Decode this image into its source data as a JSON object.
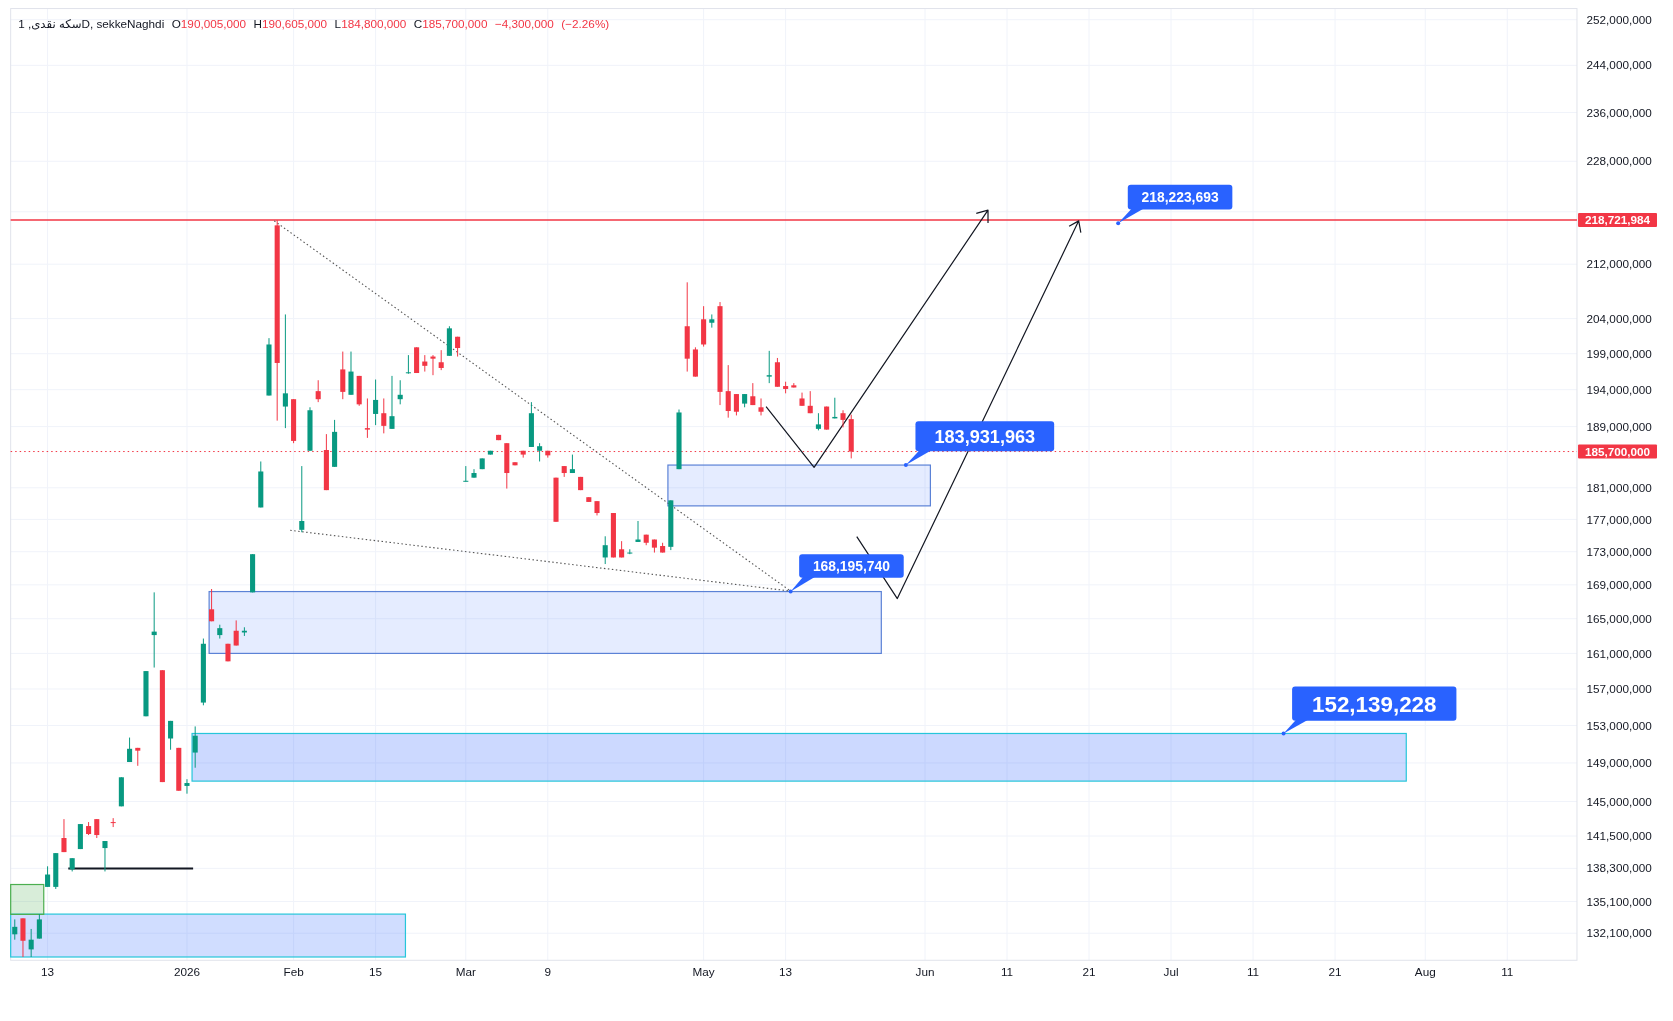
{
  "chart_data": {
    "type": "candlestick",
    "title": "سکه نقدی, 1D, sekkeNaghdi",
    "subtitle": "O190,005,000 H190,605,000 L184,800,000 C185,700,000 −4,300,000 (−2.26%)",
    "categories": [
      null,
      null,
      null,
      null,
      "13",
      null,
      null,
      null,
      null,
      null,
      null,
      null,
      null,
      null,
      null,
      null,
      null,
      null,
      null,
      null,
      null,
      "2026",
      null,
      null,
      null,
      null,
      null,
      null,
      null,
      null,
      null,
      null,
      null,
      null,
      "Feb",
      null,
      null,
      null,
      null,
      null,
      null,
      null,
      null,
      null,
      "15",
      null,
      null,
      null,
      null,
      null,
      null,
      null,
      null,
      null,
      null,
      "Mar",
      null,
      null,
      null,
      null,
      null,
      null,
      null,
      null,
      null,
      "9",
      null,
      null,
      null,
      null,
      null,
      null,
      null,
      null,
      null,
      null,
      null,
      null,
      null,
      null,
      null,
      null,
      null,
      null,
      "May",
      null,
      null,
      null,
      null,
      null,
      null,
      null,
      null,
      null,
      "13",
      null,
      null,
      null,
      null,
      null,
      null,
      null,
      null,
      null,
      null,
      null,
      null,
      null,
      null,
      null,
      null,
      "Jun",
      null,
      null,
      null,
      null,
      null,
      null,
      null,
      null,
      null,
      "11",
      null,
      null,
      null,
      null,
      null,
      null,
      null,
      null,
      null,
      "21",
      null,
      null,
      null,
      null,
      null,
      null,
      null,
      null,
      null,
      "Jul",
      null,
      null,
      null,
      null,
      null,
      null,
      null,
      null,
      null,
      "11",
      null,
      null,
      null,
      null,
      null,
      null,
      null,
      null,
      null,
      "21",
      null,
      null,
      null,
      null,
      null,
      null,
      null,
      null,
      null,
      null,
      "Aug",
      null,
      null,
      null,
      null,
      null,
      null,
      null,
      null,
      null,
      "11",
      null,
      null,
      null,
      null,
      null,
      null,
      null,
      null
    ],
    "ohlc": [
      [
        132000000,
        133400000,
        131500000,
        132700000
      ],
      [
        133500000,
        133500000,
        129900000,
        131400000
      ],
      [
        130600000,
        132500000,
        129900000,
        131500000
      ],
      [
        131600000,
        133900000,
        131600000,
        133400000
      ],
      [
        136500000,
        138500000,
        136500000,
        137700000
      ],
      [
        136500000,
        139800000,
        136300000,
        139800000
      ],
      [
        141300000,
        143200000,
        139900000,
        139900000
      ],
      [
        138200000,
        139300000,
        138000000,
        139300000
      ],
      [
        140200000,
        142700000,
        140200000,
        142700000
      ],
      [
        142500000,
        142900000,
        141600000,
        141700000
      ],
      [
        143200000,
        143200000,
        141300000,
        141600000
      ],
      [
        140300000,
        141000000,
        138000000,
        141000000
      ],
      [
        142900000,
        143300000,
        142400000,
        142800000
      ],
      [
        144500000,
        147500000,
        144500000,
        147500000
      ],
      [
        149100000,
        151700000,
        149100000,
        150500000
      ],
      [
        150600000,
        150600000,
        148700000,
        150300000
      ],
      [
        154000000,
        159000000,
        154000000,
        159000000
      ],
      [
        163100000,
        168100000,
        159400000,
        163500000
      ],
      [
        159100000,
        159100000,
        147000000,
        147000000
      ],
      [
        151600000,
        153500000,
        150400000,
        153500000
      ],
      [
        150600000,
        150600000,
        146100000,
        146100000
      ],
      [
        146600000,
        147300000,
        145800000,
        146900000
      ],
      [
        150100000,
        152900000,
        148500000,
        151900000
      ],
      [
        155500000,
        162700000,
        155200000,
        162100000
      ],
      [
        166100000,
        168500000,
        164700000,
        164700000
      ],
      [
        163100000,
        164300000,
        162700000,
        163900000
      ],
      [
        162100000,
        162100000,
        160100000,
        160100000
      ],
      [
        163600000,
        164800000,
        161900000,
        161900000
      ],
      [
        163400000,
        164000000,
        163000000,
        163600000
      ],
      [
        168100000,
        172700000,
        168100000,
        172700000
      ],
      [
        178500000,
        184400000,
        178500000,
        183100000
      ],
      [
        193200000,
        201200000,
        193200000,
        200300000
      ],
      [
        217900000,
        218700000,
        189800000,
        197700000
      ],
      [
        191700000,
        204600000,
        188800000,
        193500000
      ],
      [
        192700000,
        192700000,
        186800000,
        187100000
      ],
      [
        175700000,
        183800000,
        175400000,
        176800000
      ],
      [
        185800000,
        191600000,
        185800000,
        191200000
      ],
      [
        193800000,
        195300000,
        192300000,
        192700000
      ],
      [
        185900000,
        188000000,
        180700000,
        180700000
      ],
      [
        183700000,
        189900000,
        183700000,
        188300000
      ],
      [
        196800000,
        199300000,
        192700000,
        193700000
      ],
      [
        193300000,
        199300000,
        193300000,
        196500000
      ],
      [
        195900000,
        195900000,
        191800000,
        192000000
      ],
      [
        188800000,
        192800000,
        187500000,
        188600000
      ],
      [
        190700000,
        195400000,
        189200000,
        192600000
      ],
      [
        190800000,
        192800000,
        188100000,
        189100000
      ],
      [
        188700000,
        195900000,
        188700000,
        190400000
      ],
      [
        192700000,
        195300000,
        192000000,
        193300000
      ],
      [
        196300000,
        198800000,
        196200000,
        196400000
      ],
      [
        199900000,
        199900000,
        196300000,
        196300000
      ],
      [
        197900000,
        198800000,
        196500000,
        197300000
      ],
      [
        198600000,
        198800000,
        196000000,
        198300000
      ],
      [
        197800000,
        199500000,
        196700000,
        197000000
      ],
      [
        198700000,
        202900000,
        198700000,
        202600000
      ],
      [
        201400000,
        201400000,
        198600000,
        199800000
      ],
      [
        181800000,
        183800000,
        181800000,
        181900000
      ],
      [
        182300000,
        183400000,
        182300000,
        182900000
      ],
      [
        183400000,
        184800000,
        183400000,
        184800000
      ],
      [
        185300000,
        185800000,
        185300000,
        185800000
      ],
      [
        187900000,
        187900000,
        187200000,
        187200000
      ],
      [
        186800000,
        186800000,
        180900000,
        182900000
      ],
      [
        184300000,
        184300000,
        183900000,
        183900000
      ],
      [
        185800000,
        185800000,
        184900000,
        185300000
      ],
      [
        186300000,
        192300000,
        186300000,
        190800000
      ],
      [
        185800000,
        186800000,
        184400000,
        186400000
      ],
      [
        185800000,
        185800000,
        184900000,
        185200000
      ],
      [
        182300000,
        182300000,
        176700000,
        176700000
      ],
      [
        183800000,
        183800000,
        182400000,
        182900000
      ],
      [
        182900000,
        185300000,
        182900000,
        183400000
      ],
      [
        182400000,
        182400000,
        180700000,
        180700000
      ],
      [
        179800000,
        179800000,
        179200000,
        179200000
      ],
      [
        179300000,
        179300000,
        177500000,
        177800000
      ],
      [
        172300000,
        174900000,
        171500000,
        173800000
      ],
      [
        177800000,
        177800000,
        172300000,
        172300000
      ],
      [
        173300000,
        174300000,
        172300000,
        172300000
      ],
      [
        172800000,
        173300000,
        172700000,
        172900000
      ],
      [
        174200000,
        176800000,
        174200000,
        174500000
      ],
      [
        175100000,
        175100000,
        173800000,
        174100000
      ],
      [
        174500000,
        174500000,
        172900000,
        173500000
      ],
      [
        173700000,
        174100000,
        172900000,
        172900000
      ],
      [
        173600000,
        179400000,
        173200000,
        179400000
      ],
      [
        183400000,
        191300000,
        183400000,
        190900000
      ],
      [
        202900000,
        209300000,
        196500000,
        198300000
      ],
      [
        199600000,
        199900000,
        195800000,
        195800000
      ],
      [
        203900000,
        205800000,
        200000000,
        200300000
      ],
      [
        203400000,
        204600000,
        202700000,
        203900000
      ],
      [
        205800000,
        206400000,
        191900000,
        193700000
      ],
      [
        193800000,
        197400000,
        190200000,
        191100000
      ],
      [
        193400000,
        193400000,
        190500000,
        191000000
      ],
      [
        192100000,
        193400000,
        191600000,
        193400000
      ],
      [
        193100000,
        194900000,
        191900000,
        191900000
      ],
      [
        191600000,
        192800000,
        190500000,
        191000000
      ],
      [
        195800000,
        199400000,
        194900000,
        196000000
      ],
      [
        197800000,
        198400000,
        194400000,
        194400000
      ],
      [
        194500000,
        195100000,
        193500000,
        194100000
      ],
      [
        194600000,
        194900000,
        194300000,
        194300000
      ],
      [
        192800000,
        193600000,
        191800000,
        191800000
      ],
      [
        191800000,
        193800000,
        190800000,
        190800000
      ],
      [
        188700000,
        190800000,
        188500000,
        189300000
      ],
      [
        191700000,
        191700000,
        188600000,
        188600000
      ],
      [
        190100000,
        192900000,
        190100000,
        190300000
      ],
      [
        190800000,
        191200000,
        188900000,
        189900000
      ],
      [
        190005000,
        190605000,
        184800000,
        185700000
      ],
      null,
      null,
      null,
      null,
      null,
      null,
      null,
      null,
      null,
      null,
      null,
      null,
      null,
      null,
      null,
      null,
      null,
      null,
      null,
      null,
      null,
      null,
      null,
      null,
      null,
      null,
      null,
      null,
      null,
      null,
      null,
      null,
      null,
      null,
      null,
      null,
      null,
      null,
      null,
      null,
      null,
      null,
      null,
      null,
      null,
      null,
      null,
      null,
      null,
      null,
      null,
      null,
      null,
      null,
      null,
      null,
      null,
      null,
      null,
      null,
      null,
      null,
      null,
      null,
      null,
      null,
      null,
      null,
      null,
      null,
      null,
      null,
      null,
      null,
      null,
      null,
      null,
      null,
      null,
      null,
      null,
      null,
      null,
      null,
      null,
      null,
      null,
      null
    ],
    "colors": [
      "#089981",
      "#f23645",
      "#089981",
      "#089981",
      "#089981",
      "#089981",
      "#f23645",
      "#089981",
      "#089981",
      "#f23645",
      "#f23645",
      "#089981",
      "#f23645",
      "#089981",
      "#089981",
      "#f23645",
      "#089981",
      "#089981",
      "#f23645",
      "#089981",
      "#f23645",
      "#089981",
      "#089981",
      "#089981",
      "#f23645",
      "#089981",
      "#f23645",
      "#f23645",
      "#089981",
      "#089981",
      "#089981",
      "#089981",
      "#f23645",
      "#089981",
      "#f23645",
      "#089981",
      "#089981",
      "#f23645",
      "#f23645",
      "#089981",
      "#f23645",
      "#089981",
      "#f23645",
      "#f23645",
      "#089981",
      "#f23645",
      "#089981",
      "#089981",
      "#089981",
      "#f23645",
      "#f23645",
      "#f23645",
      "#f23645",
      "#089981",
      "#f23645",
      "#089981",
      "#089981",
      "#089981",
      "#089981",
      "#f23645",
      "#f23645",
      "#f23645",
      "#f23645",
      "#089981",
      "#089981",
      "#f23645",
      "#f23645",
      "#f23645",
      "#089981",
      "#f23645",
      "#f23645",
      "#f23645",
      "#089981",
      "#f23645",
      "#f23645",
      "#089981",
      "#089981",
      "#f23645",
      "#f23645",
      "#f23645",
      "#089981",
      "#089981",
      "#f23645",
      "#f23645",
      "#f23645",
      "#089981",
      "#f23645",
      "#f23645",
      "#f23645",
      "#089981",
      "#f23645",
      "#f23645",
      "#089981",
      "#f23645",
      "#f23645",
      "#f23645",
      "#f23645",
      "#f23645",
      "#089981",
      "#f23645",
      "#089981",
      "#f23645",
      "#f23645",
      null,
      null,
      null,
      null,
      null,
      null,
      null,
      null,
      null,
      null,
      null,
      null,
      null,
      null,
      null,
      null,
      null,
      null,
      null,
      null,
      null,
      null,
      null,
      null,
      null,
      null,
      null,
      null,
      null,
      null,
      null,
      null,
      null,
      null,
      null,
      null,
      null,
      null,
      null,
      null,
      null,
      null,
      null,
      null,
      null,
      null,
      null,
      null,
      null,
      null,
      null,
      null,
      null,
      null,
      null,
      null,
      null,
      null,
      null,
      null,
      null,
      null,
      null,
      null,
      null,
      null,
      null,
      null,
      null,
      null,
      null,
      null,
      null,
      null,
      null,
      null,
      null,
      null,
      null,
      null,
      null,
      null,
      null,
      null,
      null,
      null,
      null,
      null
    ],
    "log": true,
    "grid": true,
    "ylim": [
      129600000,
      254000000
    ],
    "yticks": [
      {
        "value": 132100000,
        "label": "132,100,000"
      },
      {
        "value": 135100000,
        "label": "135,100,000"
      },
      {
        "value": 138300000,
        "label": "138,300,000"
      },
      {
        "value": 141500000,
        "label": "141,500,000"
      },
      {
        "value": 145000000,
        "label": "145,000,000"
      },
      {
        "value": 149000000,
        "label": "149,000,000"
      },
      {
        "value": 153000000,
        "label": "153,000,000"
      },
      {
        "value": 157000000,
        "label": "157,000,000"
      },
      {
        "value": 161000000,
        "label": "161,000,000"
      },
      {
        "value": 165000000,
        "label": "165,000,000"
      },
      {
        "value": 169000000,
        "label": "169,000,000"
      },
      {
        "value": 173000000,
        "label": "173,000,000"
      },
      {
        "value": 177000000,
        "label": "177,000,000"
      },
      {
        "value": 181000000,
        "label": "181,000,000"
      },
      {
        "value": 189000000,
        "label": "189,000,000"
      },
      {
        "value": 194000000,
        "label": "194,000,000"
      },
      {
        "value": 199000000,
        "label": "199,000,000"
      },
      {
        "value": 204000000,
        "label": "204,000,000"
      },
      {
        "value": 212000000,
        "label": "212,000,000"
      },
      {
        "value": 220000000,
        "label": null
      },
      {
        "value": 228000000,
        "label": "228,000,000"
      },
      {
        "value": 236000000,
        "label": "236,000,000"
      },
      {
        "value": 244000000,
        "label": "244,000,000"
      },
      {
        "value": 252000000,
        "label": "252,000,000"
      }
    ],
    "ref_lines": [
      {
        "axis": "y",
        "value": 218721984,
        "label": "218,721,984",
        "color": "#f23645",
        "line_style": "solid"
      },
      {
        "axis": "y",
        "value": 185700000,
        "label": "185,700,000",
        "color": "#f23645",
        "line_style": "dotted"
      }
    ],
    "bands": [
      {
        "axis": "y",
        "from": 129900000,
        "to": 133900000,
        "color": "#2962ff"
      },
      {
        "axis": "y",
        "from": 178700000,
        "to": 183931963,
        "color": "#2962ff"
      },
      {
        "axis": "y",
        "from": 161000000,
        "to": 168195740,
        "color": "#2962ff"
      },
      {
        "axis": "y",
        "from": 147100000,
        "to": 152139228,
        "color": "#2962ff"
      }
    ],
    "annotations": [
      {
        "text": "218,223,693",
        "y": 218223693
      },
      "183,931,963",
      {
        "text": "168,195,740",
        "y": 168195740
      },
      {
        "text": "152,139,228",
        "y": 152139228
      }
    ]
  }
}
